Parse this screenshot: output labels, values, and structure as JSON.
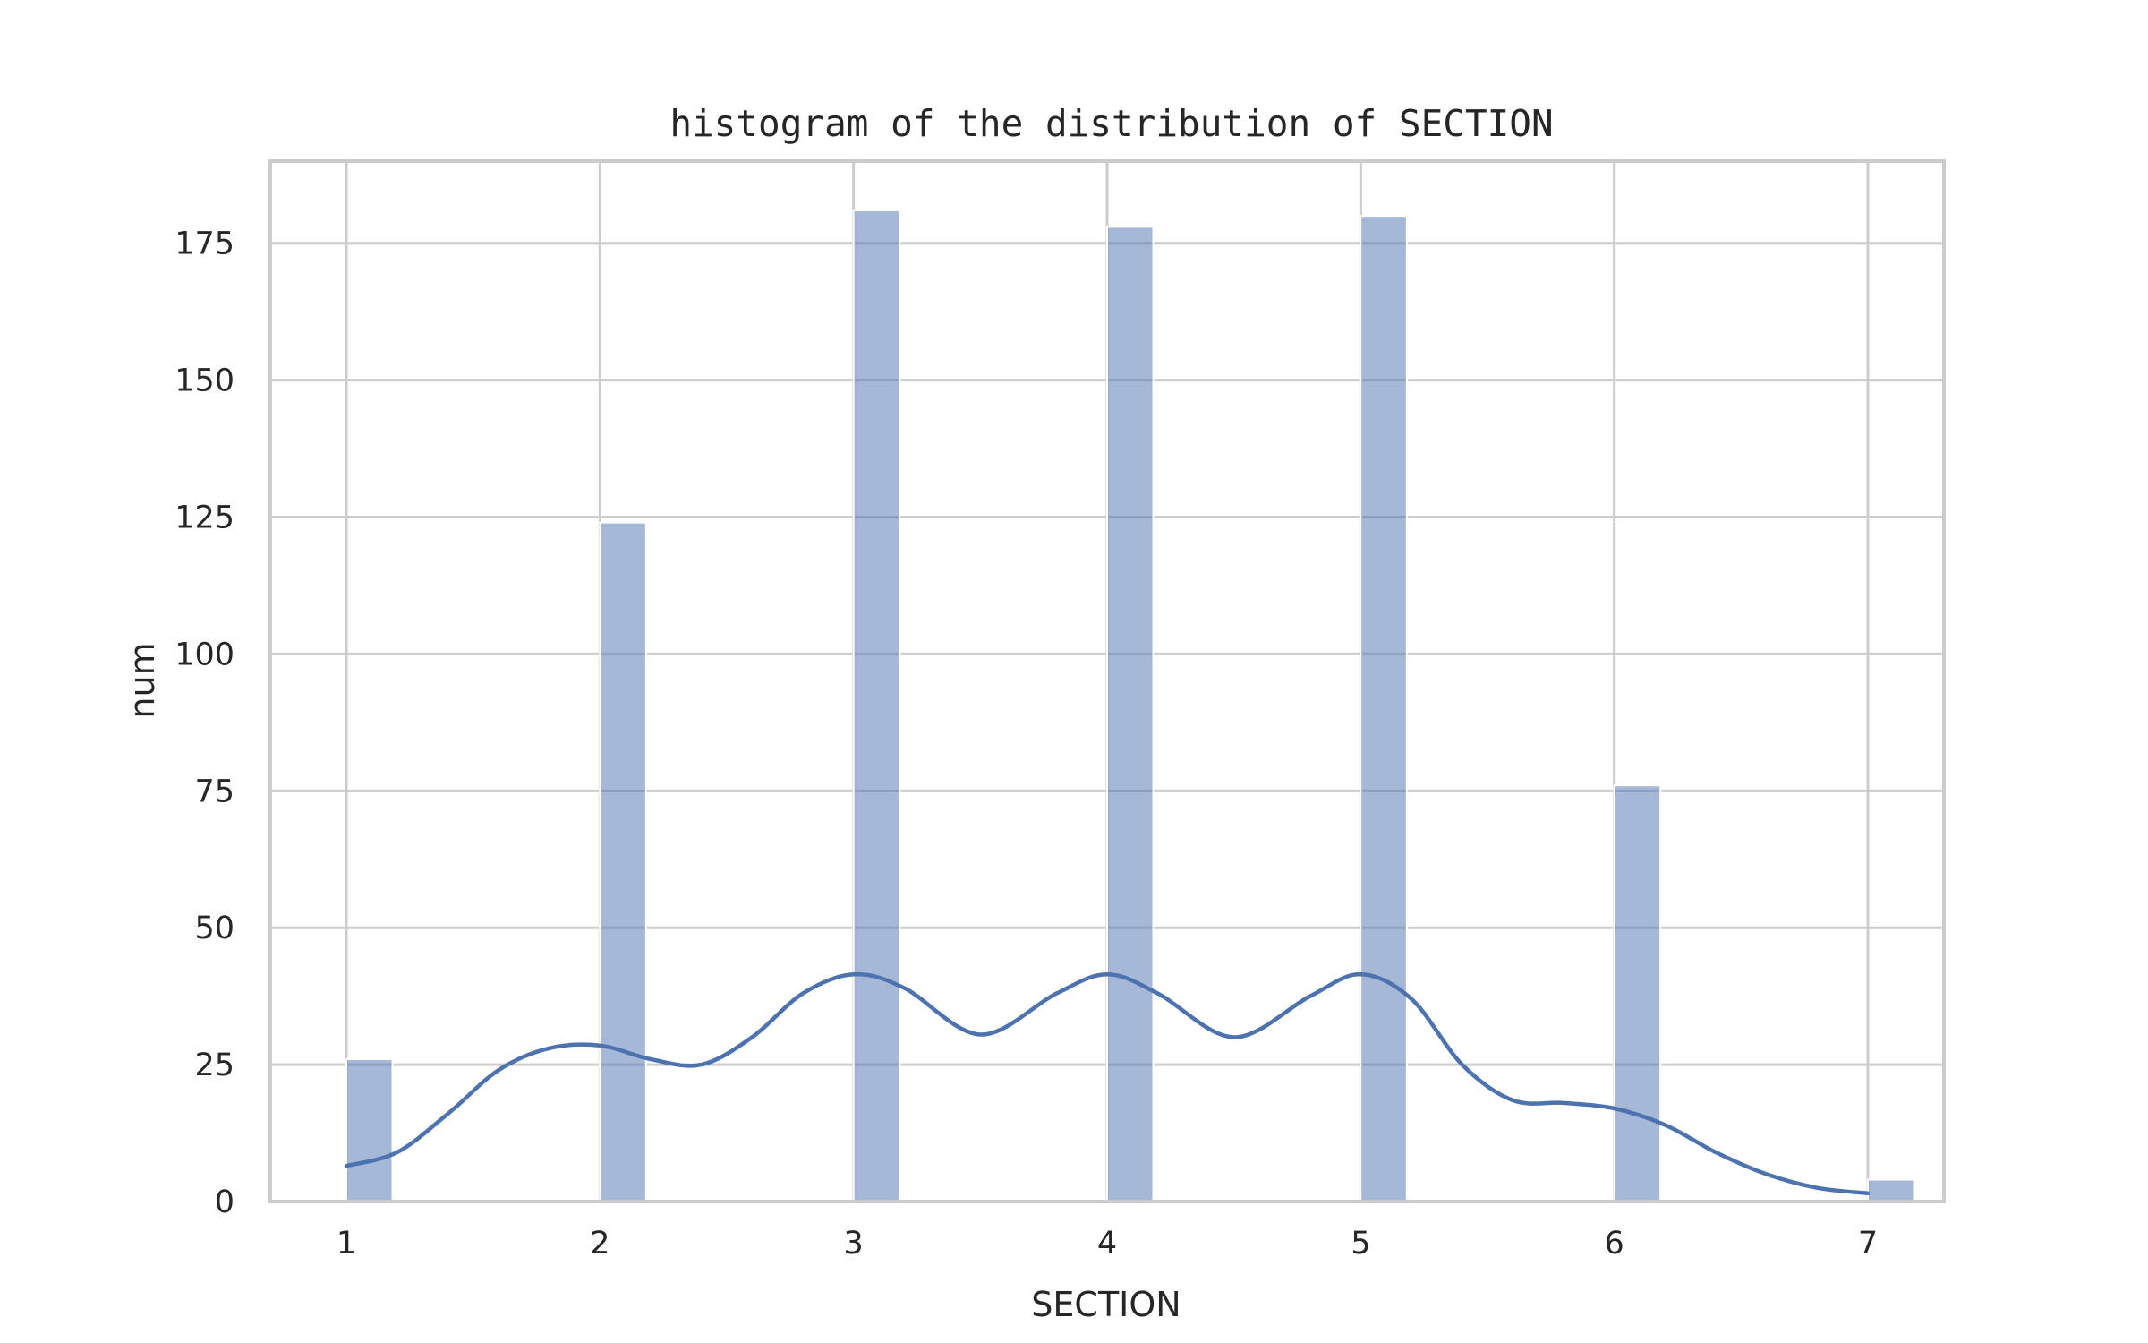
{
  "chart_data": {
    "type": "bar",
    "title": "histogram of the distribution of SECTION",
    "xlabel": "SECTION",
    "ylabel": "num",
    "xlim": [
      0.7,
      7.3
    ],
    "ylim": [
      0,
      190
    ],
    "xticks": [
      1,
      2,
      3,
      4,
      5,
      6,
      7
    ],
    "yticks": [
      0,
      25,
      50,
      75,
      100,
      125,
      150,
      175
    ],
    "grid": true,
    "bar_width": 0.1818,
    "bars": [
      {
        "x": 1,
        "value": 26
      },
      {
        "x": 2,
        "value": 124
      },
      {
        "x": 3,
        "value": 181
      },
      {
        "x": 4,
        "value": 178
      },
      {
        "x": 5,
        "value": 180
      },
      {
        "x": 6,
        "value": 76
      },
      {
        "x": 7,
        "value": 4
      }
    ],
    "kde": {
      "x": [
        1.0,
        1.2,
        1.4,
        1.6,
        1.8,
        2.0,
        2.2,
        2.4,
        2.6,
        2.8,
        3.0,
        3.2,
        3.5,
        3.8,
        4.0,
        4.2,
        4.5,
        4.8,
        5.0,
        5.2,
        5.4,
        5.6,
        5.8,
        6.0,
        6.2,
        6.4,
        6.6,
        6.8,
        7.0
      ],
      "y": [
        6.5,
        9,
        16,
        24,
        28,
        28.5,
        26,
        25,
        30,
        38,
        41.5,
        39,
        30.5,
        38,
        41.5,
        38,
        30,
        37.5,
        41.5,
        37,
        25,
        18.5,
        18,
        17,
        14,
        9,
        5,
        2.5,
        1.5
      ]
    },
    "colors": {
      "bar": "#4c72b0",
      "bar_opacity": 0.5,
      "kde": "#4c72b0"
    }
  }
}
